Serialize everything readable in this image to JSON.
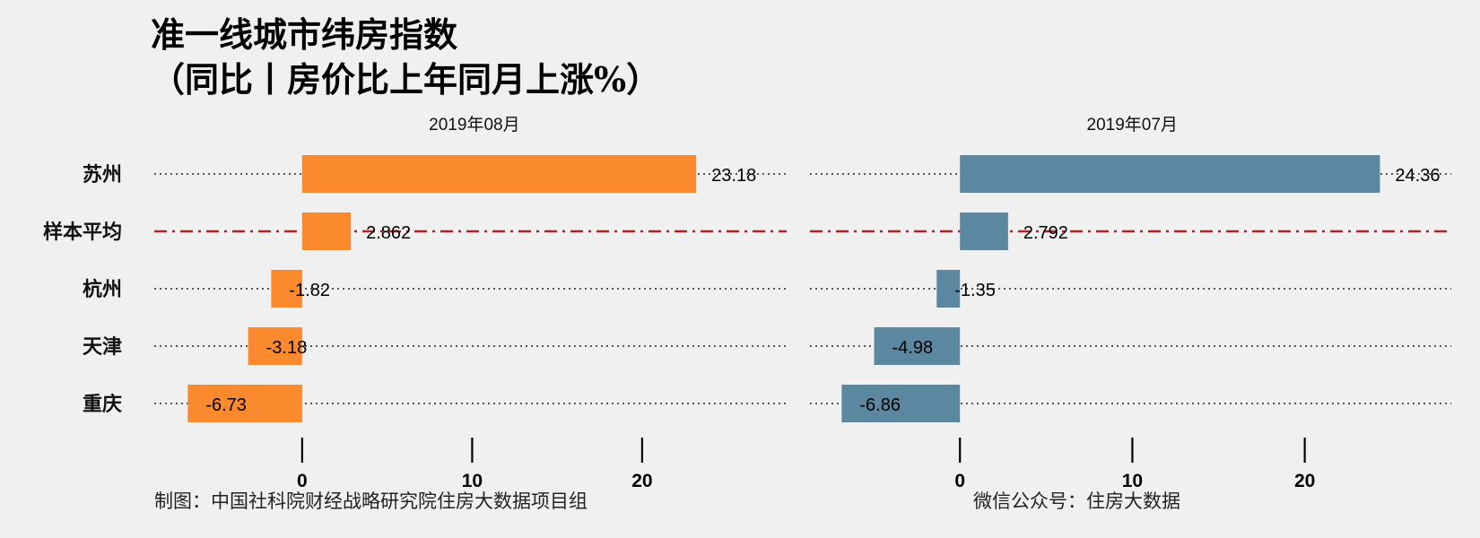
{
  "title_line1": "准一线城市纬房指数",
  "title_line2": "（同比丨房价比上年同月上涨%）",
  "footer_left": "制图：中国社科院财经战略研究院住房大数据项目组",
  "footer_right": "微信公众号：住房大数据",
  "colors": {
    "background": "#f0f0f0",
    "panel1_bar": "#fa8a2d",
    "panel2_bar": "#5b87a1",
    "average_line": "#b22222"
  },
  "chart_data": [
    {
      "type": "bar",
      "orientation": "horizontal",
      "panel_title": "2019年08月",
      "categories": [
        "苏州",
        "样本平均",
        "杭州",
        "天津",
        "重庆"
      ],
      "values": [
        23.18,
        2.862,
        -1.82,
        -3.18,
        -6.73
      ],
      "value_labels": [
        "23.18",
        "2.862",
        "-1.82",
        "-3.18",
        "-6.73"
      ],
      "xlim": [
        -8.7,
        28.5
      ],
      "xticks": [
        0,
        10,
        20
      ],
      "average_category": "样本平均"
    },
    {
      "type": "bar",
      "orientation": "horizontal",
      "panel_title": "2019年07月",
      "categories": [
        "苏州",
        "样本平均",
        "杭州",
        "天津",
        "重庆"
      ],
      "values": [
        24.36,
        2.792,
        -1.35,
        -4.98,
        -6.86
      ],
      "value_labels": [
        "24.36",
        "2.792",
        "-1.35",
        "-4.98",
        "-6.86"
      ],
      "xlim": [
        -8.7,
        28.5
      ],
      "xticks": [
        0,
        10,
        20
      ],
      "average_category": "样本平均"
    }
  ]
}
